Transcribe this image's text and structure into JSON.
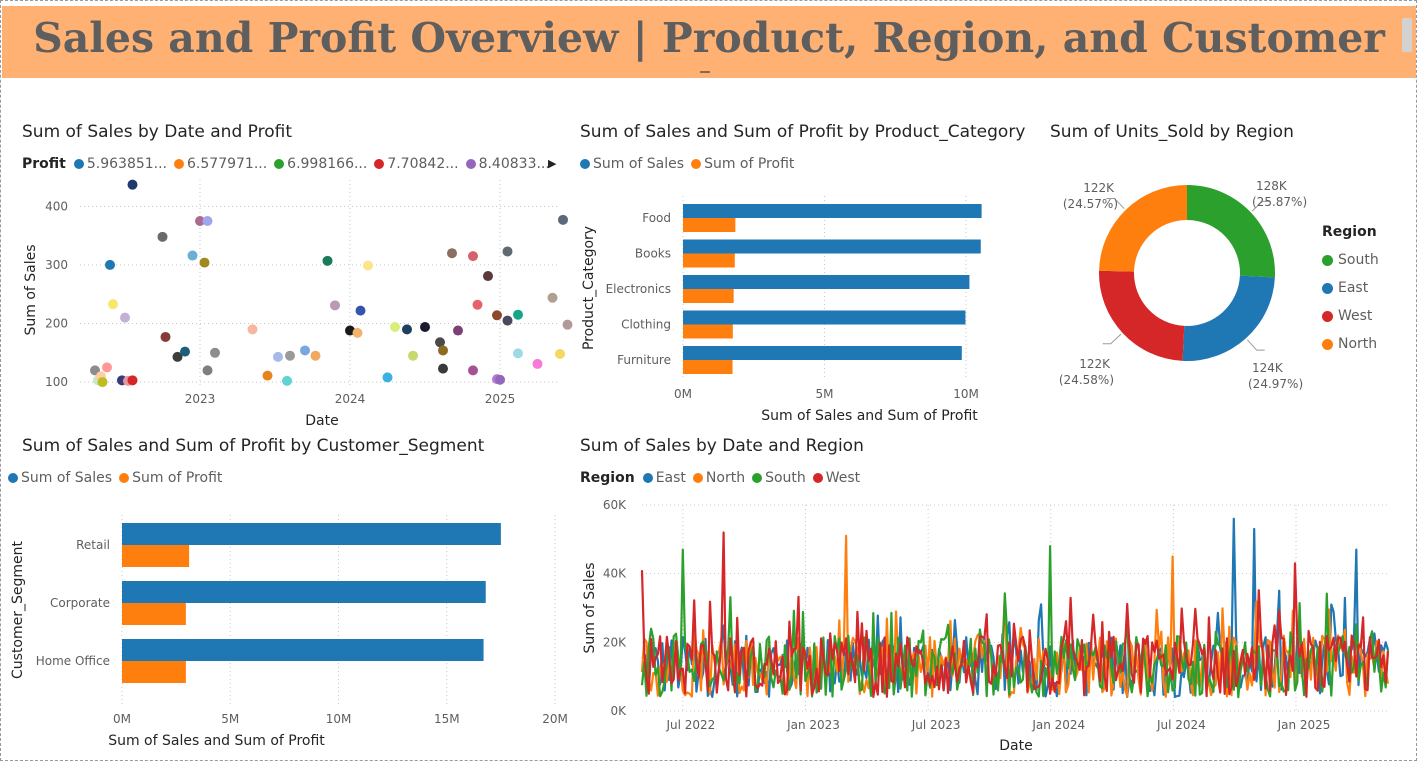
{
  "header": {
    "title": "Sales and Profit Overview | Product, Region, and Customer"
  },
  "scatter": {
    "title": "Sum of Sales by Date and Profit",
    "legend_title": "Profit",
    "legend": [
      {
        "label": "5.963851...",
        "color": "#1f77b4"
      },
      {
        "label": "6.577971...",
        "color": "#ff7f0e"
      },
      {
        "label": "6.998166...",
        "color": "#2ca02c"
      },
      {
        "label": "7.70842...",
        "color": "#d62728"
      },
      {
        "label": "8.40833...",
        "color": "#9467bd"
      }
    ],
    "xlabel": "Date",
    "ylabel": "Sum of Sales",
    "y_ticks": [
      "400",
      "300",
      "200",
      "100"
    ],
    "x_ticks": [
      "2023",
      "2024",
      "2025"
    ]
  },
  "product_chart": {
    "title": "Sum of Sales and Sum of Profit by Product_Category",
    "legend": [
      {
        "label": "Sum of Sales",
        "color": "#1f77b4"
      },
      {
        "label": "Sum of Profit",
        "color": "#ff7f0e"
      }
    ],
    "ylabel": "Product_Category",
    "xlabel": "Sum of Sales and Sum of Profit",
    "x_ticks": [
      "0M",
      "5M",
      "10M"
    ]
  },
  "units_chart": {
    "title": "Sum of Units_Sold by Region",
    "legend_title": "Region",
    "legend": [
      {
        "label": "South",
        "color": "#2ca02c"
      },
      {
        "label": "East",
        "color": "#1f77b4"
      },
      {
        "label": "West",
        "color": "#d62728"
      },
      {
        "label": "North",
        "color": "#ff7f0e"
      }
    ]
  },
  "segment_chart": {
    "title": "Sum of Sales and Sum of Profit by Customer_Segment",
    "legend": [
      {
        "label": "Sum of Sales",
        "color": "#1f77b4"
      },
      {
        "label": "Sum of Profit",
        "color": "#ff7f0e"
      }
    ],
    "ylabel": "Customer_Segment",
    "xlabel": "Sum of Sales and Sum of Profit",
    "x_ticks": [
      "0M",
      "5M",
      "10M",
      "15M",
      "20M"
    ]
  },
  "region_chart": {
    "title": "Sum of Sales by Date and Region",
    "legend_title": "Region",
    "legend": [
      {
        "label": "East",
        "color": "#1f77b4"
      },
      {
        "label": "North",
        "color": "#ff7f0e"
      },
      {
        "label": "South",
        "color": "#2ca02c"
      },
      {
        "label": "West",
        "color": "#d62728"
      }
    ],
    "xlabel": "Date",
    "ylabel": "Sum of Sales",
    "y_ticks": [
      "60K",
      "40K",
      "20K",
      "0K"
    ],
    "x_ticks": [
      "Jul 2022",
      "Jan 2023",
      "Jul 2023",
      "Jan 2024",
      "Jul 2024",
      "Jan 2025"
    ]
  },
  "chart_data": [
    {
      "type": "scatter",
      "title": "Sum of Sales by Date and Profit",
      "xlabel": "Date",
      "ylabel": "Sum of Sales",
      "x_range": [
        2022.2,
        2025.4
      ],
      "ylim": [
        95,
        445
      ],
      "points": [
        {
          "x": 2022.3,
          "y": 120,
          "c": "#8c8c8c"
        },
        {
          "x": 2022.32,
          "y": 103,
          "c": "#c7e9c0"
        },
        {
          "x": 2022.34,
          "y": 110,
          "c": "#fdd0a2"
        },
        {
          "x": 2022.35,
          "y": 100,
          "c": "#bcbd22"
        },
        {
          "x": 2022.38,
          "y": 125,
          "c": "#ff9896"
        },
        {
          "x": 2022.4,
          "y": 300,
          "c": "#1f77b4"
        },
        {
          "x": 2022.42,
          "y": 233,
          "c": "#f6e86b"
        },
        {
          "x": 2022.48,
          "y": 103,
          "c": "#393b79"
        },
        {
          "x": 2022.5,
          "y": 210,
          "c": "#c5b0d5"
        },
        {
          "x": 2022.52,
          "y": 102,
          "c": "#e7969c"
        },
        {
          "x": 2022.55,
          "y": 103,
          "c": "#d62728"
        },
        {
          "x": 2022.55,
          "y": 437,
          "c": "#1f3a6e"
        },
        {
          "x": 2022.75,
          "y": 348,
          "c": "#6a6a6a"
        },
        {
          "x": 2022.77,
          "y": 177,
          "c": "#843c39"
        },
        {
          "x": 2022.85,
          "y": 143,
          "c": "#3c3c3c"
        },
        {
          "x": 2022.9,
          "y": 152,
          "c": "#1f5f7a"
        },
        {
          "x": 2022.95,
          "y": 316,
          "c": "#6baed6"
        },
        {
          "x": 2023.0,
          "y": 375,
          "c": "#ad6a8c"
        },
        {
          "x": 2023.03,
          "y": 304,
          "c": "#a08a1e"
        },
        {
          "x": 2023.05,
          "y": 375,
          "c": "#9ea6f0"
        },
        {
          "x": 2023.05,
          "y": 120,
          "c": "#7f7f7f"
        },
        {
          "x": 2023.1,
          "y": 150,
          "c": "#8c8c8c"
        },
        {
          "x": 2023.35,
          "y": 190,
          "c": "#f7b6a0"
        },
        {
          "x": 2023.45,
          "y": 111,
          "c": "#e6851e"
        },
        {
          "x": 2023.52,
          "y": 143,
          "c": "#a8b8e8"
        },
        {
          "x": 2023.58,
          "y": 102,
          "c": "#5fd3d3"
        },
        {
          "x": 2023.6,
          "y": 145,
          "c": "#9a9a9a"
        },
        {
          "x": 2023.7,
          "y": 154,
          "c": "#7ba7e0"
        },
        {
          "x": 2023.77,
          "y": 145,
          "c": "#f2a860"
        },
        {
          "x": 2023.85,
          "y": 307,
          "c": "#1a7a5a"
        },
        {
          "x": 2023.9,
          "y": 231,
          "c": "#b79ab5"
        },
        {
          "x": 2024.0,
          "y": 188,
          "c": "#1a1a1a"
        },
        {
          "x": 2024.05,
          "y": 184,
          "c": "#f2b36b"
        },
        {
          "x": 2024.07,
          "y": 222,
          "c": "#3553b0"
        },
        {
          "x": 2024.12,
          "y": 299,
          "c": "#fbe48a"
        },
        {
          "x": 2024.25,
          "y": 108,
          "c": "#3cb0e0"
        },
        {
          "x": 2024.3,
          "y": 194,
          "c": "#d8ee7a"
        },
        {
          "x": 2024.38,
          "y": 190,
          "c": "#1f3f5f"
        },
        {
          "x": 2024.42,
          "y": 145,
          "c": "#c8d86a"
        },
        {
          "x": 2024.5,
          "y": 194,
          "c": "#1a1a2e"
        },
        {
          "x": 2024.6,
          "y": 168,
          "c": "#4a4a4a"
        },
        {
          "x": 2024.62,
          "y": 154,
          "c": "#8c6d1f"
        },
        {
          "x": 2024.62,
          "y": 123,
          "c": "#3a3a3a"
        },
        {
          "x": 2024.68,
          "y": 320,
          "c": "#8c6d61"
        },
        {
          "x": 2024.72,
          "y": 188,
          "c": "#7b4173"
        },
        {
          "x": 2024.82,
          "y": 315,
          "c": "#d6616b"
        },
        {
          "x": 2024.82,
          "y": 120,
          "c": "#a55194"
        },
        {
          "x": 2024.85,
          "y": 232,
          "c": "#e7616b"
        },
        {
          "x": 2024.92,
          "y": 281,
          "c": "#5a3a3a"
        },
        {
          "x": 2024.98,
          "y": 214,
          "c": "#8c4a2a"
        },
        {
          "x": 2024.98,
          "y": 105,
          "c": "#b07ad6"
        },
        {
          "x": 2025.0,
          "y": 104,
          "c": "#9467bd"
        },
        {
          "x": 2025.05,
          "y": 323,
          "c": "#5f6a72"
        },
        {
          "x": 2025.05,
          "y": 205,
          "c": "#4a4a5a"
        },
        {
          "x": 2025.12,
          "y": 149,
          "c": "#9edae5"
        },
        {
          "x": 2025.12,
          "y": 215,
          "c": "#17a589"
        },
        {
          "x": 2025.25,
          "y": 131,
          "c": "#f77bd6"
        },
        {
          "x": 2025.35,
          "y": 244,
          "c": "#b0a090"
        },
        {
          "x": 2025.4,
          "y": 148,
          "c": "#f6d860"
        },
        {
          "x": 2025.42,
          "y": 377,
          "c": "#5a6a7a"
        },
        {
          "x": 2025.45,
          "y": 198,
          "c": "#b39a9a"
        }
      ]
    },
    {
      "type": "bar",
      "orientation": "horizontal",
      "title": "Sum of Sales and Sum of Profit by Product_Category",
      "categories": [
        "Food",
        "Books",
        "Electronics",
        "Clothing",
        "Furniture"
      ],
      "series": [
        {
          "name": "Sum of Sales",
          "values": [
            10.55,
            10.52,
            10.12,
            9.98,
            9.85
          ]
        },
        {
          "name": "Sum of Profit",
          "values": [
            1.85,
            1.83,
            1.79,
            1.76,
            1.75
          ]
        }
      ],
      "unit": "M",
      "xlim": [
        0,
        11.2
      ],
      "xlabel": "Sum of Sales and Sum of Profit",
      "ylabel": "Product_Category"
    },
    {
      "type": "pie",
      "title": "Sum of Units_Sold by Region",
      "slices": [
        {
          "label": "South",
          "value": 128,
          "value_label": "128K",
          "pct_label": "(25.87%)"
        },
        {
          "label": "East",
          "value": 124,
          "value_label": "124K",
          "pct_label": "(24.97%)"
        },
        {
          "label": "West",
          "value": 122,
          "value_label": "122K",
          "pct_label": "(24.58%)"
        },
        {
          "label": "North",
          "value": 122,
          "value_label": "122K",
          "pct_label": "(24.57%)"
        }
      ],
      "legend_title": "Region"
    },
    {
      "type": "bar",
      "orientation": "horizontal",
      "title": "Sum of Sales and Sum of Profit by Customer_Segment",
      "categories": [
        "Retail",
        "Corporate",
        "Home Office"
      ],
      "series": [
        {
          "name": "Sum of Sales",
          "values": [
            17.5,
            16.8,
            16.7
          ]
        },
        {
          "name": "Sum of Profit",
          "values": [
            3.1,
            2.95,
            2.95
          ]
        }
      ],
      "unit": "M",
      "xlim": [
        0,
        20
      ],
      "xlabel": "Sum of Sales and Sum of Profit",
      "ylabel": "Customer_Segment"
    },
    {
      "type": "line",
      "title": "Sum of Sales by Date and Region",
      "xlabel": "Date",
      "ylabel": "Sum of Sales",
      "ylim": [
        0,
        60000
      ],
      "x_range": [
        "2022-05",
        "2025-05"
      ],
      "series": [
        {
          "name": "East",
          "peaks": [
            {
              "x": "2024-10",
              "y": 56000
            },
            {
              "x": "2024-11",
              "y": 53000
            },
            {
              "x": "2025-04",
              "y": 47000
            }
          ]
        },
        {
          "name": "North",
          "peaks": [
            {
              "x": "2023-03",
              "y": 51000
            },
            {
              "x": "2024-07",
              "y": 45000
            }
          ]
        },
        {
          "name": "South",
          "peaks": [
            {
              "x": "2022-07",
              "y": 47000
            },
            {
              "x": "2024-01",
              "y": 48000
            }
          ]
        },
        {
          "name": "West",
          "peaks": [
            {
              "x": "2022-09",
              "y": 52000
            },
            {
              "x": "2022-05",
              "y": 41000
            },
            {
              "x": "2025-01",
              "y": 43000
            }
          ]
        }
      ]
    }
  ]
}
